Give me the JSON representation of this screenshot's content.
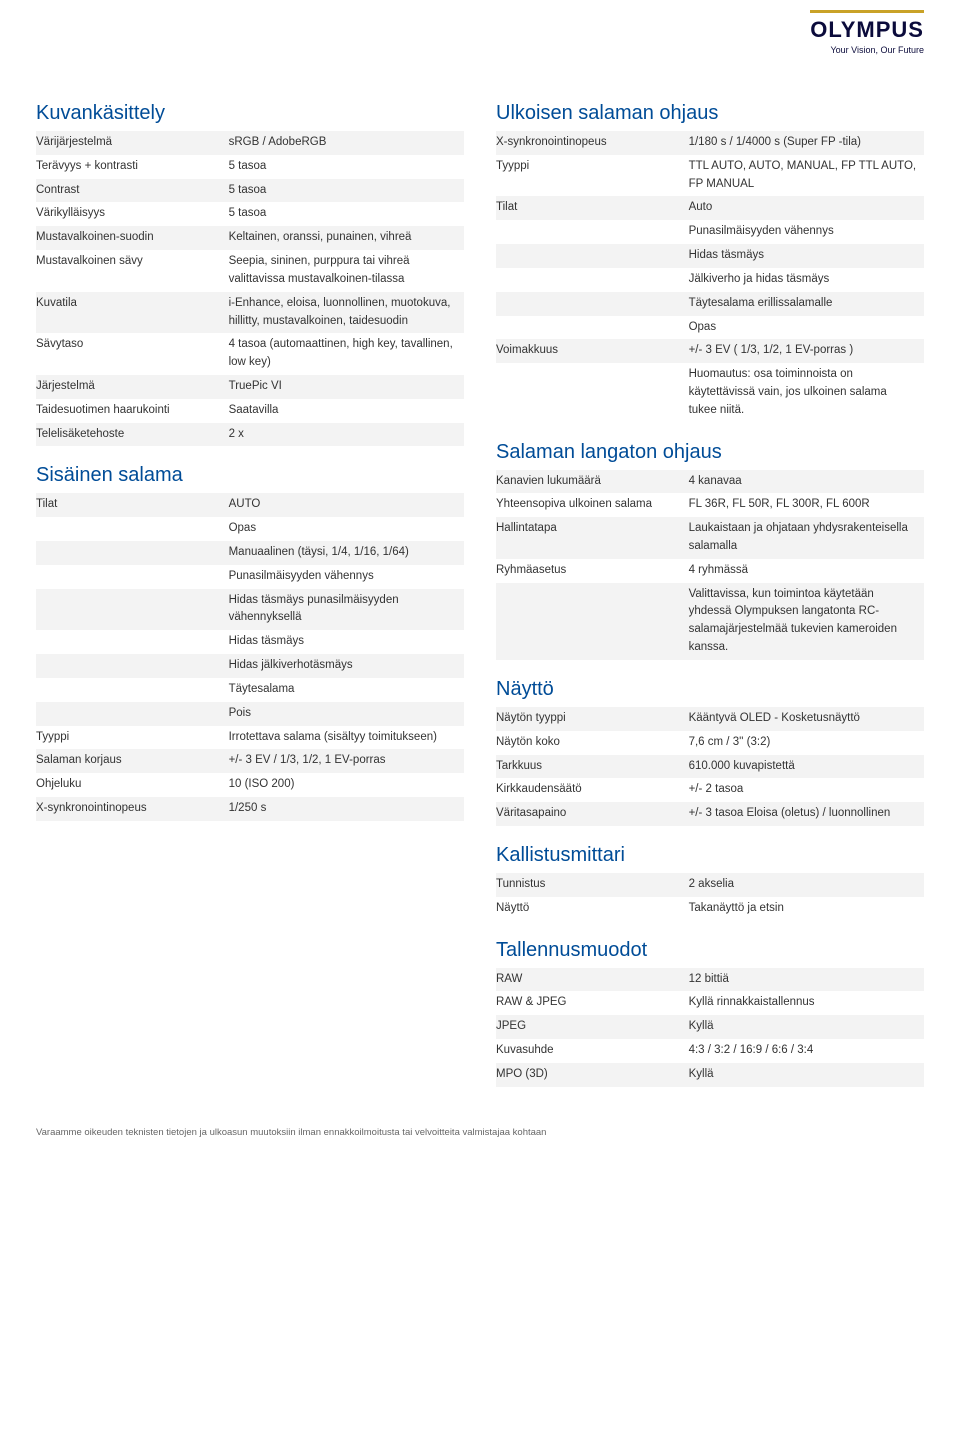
{
  "brand": {
    "name": "OLYMPUS",
    "tagline": "Your Vision, Our Future"
  },
  "columns": {
    "left": [
      {
        "title": "Kuvankäsittely",
        "rows": [
          [
            "Värijärjestelmä",
            "sRGB / AdobeRGB"
          ],
          [
            "Terävyys + kontrasti",
            "5 tasoa"
          ],
          [
            "Contrast",
            "5 tasoa"
          ],
          [
            "Värikylläisyys",
            "5 tasoa"
          ],
          [
            "Mustavalkoinen-suodin",
            "Keltainen, oranssi, punainen, vihreä"
          ],
          [
            "Mustavalkoinen sävy",
            "Seepia, sininen, purppura tai vihreä valittavissa mustavalkoinen-tilassa"
          ],
          [
            "Kuvatila",
            "i-Enhance, eloisa, luonnollinen, muotokuva, hillitty, mustavalkoinen, taidesuodin"
          ],
          [
            "Sävytaso",
            "4 tasoa (automaattinen, high key, tavallinen, low key)"
          ],
          [
            "Järjestelmä",
            "TruePic VI"
          ],
          [
            "Taidesuotimen haarukointi",
            "Saatavilla"
          ],
          [
            "Telelisäketehoste",
            "2 x"
          ]
        ]
      },
      {
        "title": "Sisäinen salama",
        "rows": [
          [
            "Tilat",
            "AUTO\nOpas\nManuaalinen (täysi, 1/4, 1/16, 1/64)\nPunasilmäisyyden vähennys\nHidas täsmäys punasilmäisyyden vähennyksellä\nHidas täsmäys\nHidas jälkiverhotäsmäys\nTäytesalama\nPois"
          ],
          [
            "Tyyppi",
            "Irrotettava salama (sisältyy toimitukseen)"
          ],
          [
            "Salaman korjaus",
            "+/- 3 EV / 1/3, 1/2, 1 EV-porras"
          ],
          [
            "Ohjeluku",
            "10 (ISO 200)"
          ],
          [
            "X-synkronointinopeus",
            "1/250 s"
          ]
        ]
      }
    ],
    "right": [
      {
        "title": "Ulkoisen salaman ohjaus",
        "rows": [
          [
            "X-synkronointinopeus",
            "1/180 s / 1/4000 s (Super FP -tila)"
          ],
          [
            "Tyyppi",
            "TTL AUTO, AUTO, MANUAL, FP TTL AUTO, FP MANUAL"
          ],
          [
            "Tilat",
            "Auto\nPunasilmäisyyden vähennys\nHidas täsmäys\nJälkiverho ja hidas täsmäys\nTäytesalama erillissalamalle\nOpas"
          ],
          [
            "Voimakkuus",
            "+/- 3 EV ( 1/3, 1/2, 1 EV-porras )\nHuomautus: osa toiminnoista on käytettävissä vain, jos ulkoinen salama tukee niitä."
          ]
        ]
      },
      {
        "title": "Salaman langaton ohjaus",
        "rows": [
          [
            "Kanavien lukumäärä",
            "4 kanavaa"
          ],
          [
            "Yhteensopiva ulkoinen salama",
            "FL 36R, FL 50R, FL 300R, FL 600R"
          ],
          [
            "Hallintatapa",
            "Laukaistaan ja ohjataan yhdysrakenteisella salamalla"
          ],
          [
            "Ryhmäasetus",
            "4 ryhmässä\nValittavissa, kun toimintoa käytetään yhdessä Olympuksen langatonta RC-salamajärjestelmää tukevien kameroiden kanssa."
          ]
        ]
      },
      {
        "title": "Näyttö",
        "rows": [
          [
            "Näytön tyyppi",
            "Kääntyvä OLED - Kosketusnäyttö"
          ],
          [
            "Näytön koko",
            "7,6 cm / 3'' (3:2)"
          ],
          [
            "Tarkkuus",
            "610.000 kuvapistettä"
          ],
          [
            "Kirkkaudensäätö",
            "+/- 2 tasoa"
          ],
          [
            "Väritasapaino",
            "+/- 3 tasoa Eloisa (oletus) / luonnollinen"
          ]
        ]
      },
      {
        "title": "Kallistusmittari",
        "rows": [
          [
            "Tunnistus",
            "2 akselia"
          ],
          [
            "Näyttö",
            "Takanäyttö ja etsin"
          ]
        ]
      },
      {
        "title": "Tallennusmuodot",
        "rows": [
          [
            "RAW",
            "12 bittiä"
          ],
          [
            "RAW & JPEG",
            "Kyllä rinnakkaistallennus"
          ],
          [
            "JPEG",
            "Kyllä"
          ],
          [
            "Kuvasuhde",
            "4:3 / 3:2 / 16:9 / 6:6 / 3:4"
          ],
          [
            "MPO (3D)",
            "Kyllä"
          ]
        ]
      }
    ]
  },
  "footnote": "Varaamme oikeuden teknisten tietojen ja ulkoasun muutoksiin ilman ennakkoilmoitusta tai velvoitteita valmistajaa kohtaan",
  "style": {
    "page_bg": "#ffffff",
    "title_color": "#004c97",
    "row_odd_bg": "#f3f3f3",
    "row_even_bg": "#ffffff",
    "text_color": "#333333",
    "brand_color": "#0b0b3b",
    "brand_accent": "#c9a227",
    "title_fontsize": 20,
    "body_fontsize": 11.5,
    "footnote_fontsize": 9.5
  }
}
